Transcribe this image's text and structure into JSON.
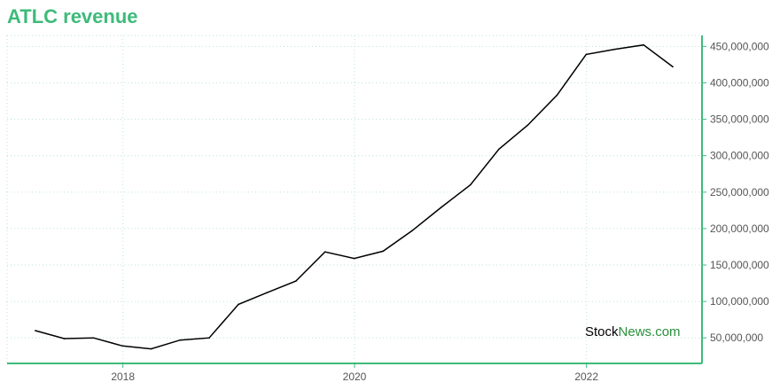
{
  "title": "ATLC revenue",
  "watermark": {
    "part1": "Stock",
    "part2": "News",
    "part3": ".com"
  },
  "colors": {
    "accent": "#3dbb7a",
    "line": "#000000",
    "grid": "#bde6d0",
    "watermark_green": "#2a8f3c"
  },
  "chart_data": {
    "type": "line",
    "title": "ATLC revenue",
    "xlabel": "",
    "ylabel": "",
    "x_ticks": [
      "2018",
      "2020",
      "2022"
    ],
    "y_ticks": [
      "50,000,000",
      "100,000,000",
      "150,000,000",
      "200,000,000",
      "250,000,000",
      "300,000,000",
      "350,000,000",
      "400,000,000",
      "450,000,000"
    ],
    "y_axis_position": "right",
    "ylim": [
      15000000,
      465000000
    ],
    "xlim": [
      "2017-01-01",
      "2022-12-31"
    ],
    "grid": true,
    "series": [
      {
        "x": [
          "2017-03-31",
          "2017-06-30",
          "2017-09-30",
          "2017-12-31",
          "2018-03-31",
          "2018-06-30",
          "2018-09-30",
          "2018-12-31",
          "2019-03-31",
          "2019-06-30",
          "2019-09-30",
          "2019-12-31",
          "2020-03-31",
          "2020-06-30",
          "2020-09-30",
          "2020-12-31",
          "2021-03-31",
          "2021-06-30",
          "2021-09-30",
          "2021-12-31",
          "2022-03-31",
          "2022-06-30",
          "2022-09-30"
        ],
        "values": [
          60000000,
          49000000,
          50000000,
          39000000,
          35000000,
          47000000,
          50000000,
          96000000,
          112000000,
          128000000,
          168000000,
          159000000,
          169000000,
          197000000,
          229000000,
          260000000,
          309000000,
          342000000,
          383000000,
          439000000,
          446000000,
          452000000,
          422000000
        ]
      }
    ]
  }
}
